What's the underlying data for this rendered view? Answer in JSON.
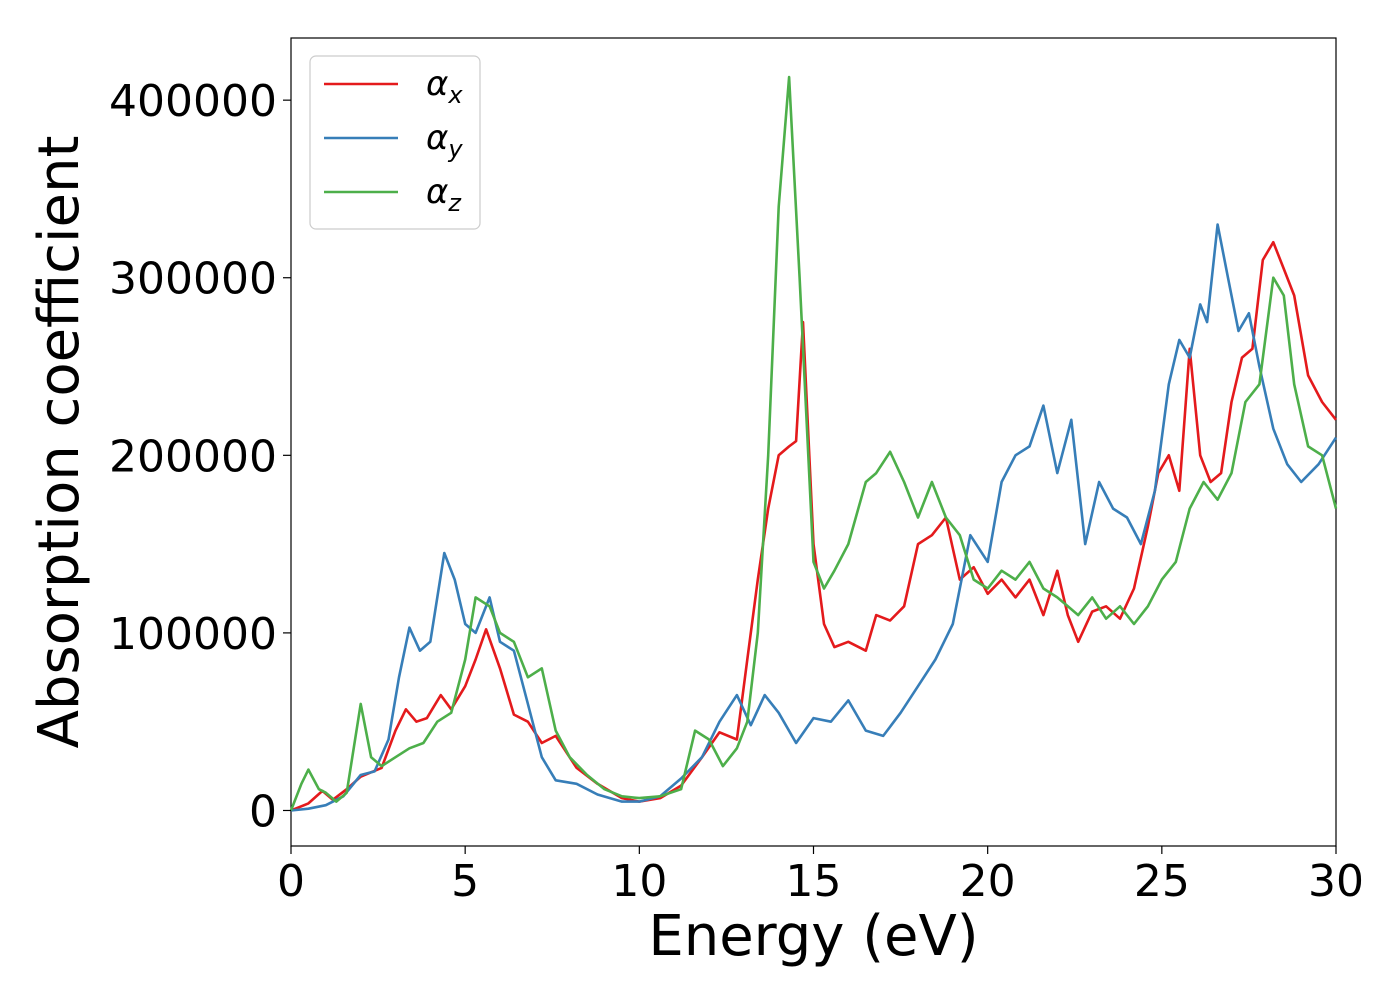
{
  "chart_data": {
    "type": "line",
    "xlabel": "Energy (eV)",
    "ylabel": "Absorption coefficient",
    "xlim": [
      0,
      30
    ],
    "ylim": [
      -20000,
      435000
    ],
    "xticks": [
      0,
      5,
      10,
      15,
      20,
      25,
      30
    ],
    "yticks": [
      0,
      100000,
      200000,
      300000,
      400000
    ],
    "grid": false,
    "legend_position": "top-left",
    "series": [
      {
        "name": "α",
        "subscript": "x",
        "color": "#e41a1c",
        "x": [
          0,
          0.5,
          0.9,
          1.2,
          1.6,
          2.0,
          2.6,
          3.0,
          3.3,
          3.6,
          3.9,
          4.3,
          4.6,
          5.0,
          5.3,
          5.6,
          6.0,
          6.4,
          6.8,
          7.2,
          7.6,
          8.2,
          8.8,
          9.5,
          10.0,
          10.6,
          11.2,
          11.8,
          12.3,
          12.8,
          13.1,
          13.4,
          13.7,
          14.0,
          14.3,
          14.5,
          14.7,
          15.0,
          15.3,
          15.6,
          16.0,
          16.5,
          16.8,
          17.2,
          17.6,
          18.0,
          18.4,
          18.8,
          19.2,
          19.6,
          20.0,
          20.4,
          20.8,
          21.2,
          21.6,
          22.0,
          22.3,
          22.6,
          23.0,
          23.4,
          23.8,
          24.2,
          24.6,
          24.9,
          25.2,
          25.5,
          25.8,
          26.1,
          26.4,
          26.7,
          27.0,
          27.3,
          27.6,
          27.9,
          28.2,
          28.5,
          28.8,
          29.2,
          29.6,
          30.0
        ],
        "y": [
          0,
          4000,
          11000,
          6000,
          12000,
          19000,
          24000,
          45000,
          57000,
          50000,
          52000,
          65000,
          57000,
          70000,
          85000,
          102000,
          80000,
          54000,
          50000,
          38000,
          42000,
          24000,
          15000,
          7000,
          5000,
          7000,
          14000,
          30000,
          44000,
          40000,
          85000,
          130000,
          170000,
          200000,
          205000,
          208000,
          275000,
          150000,
          105000,
          92000,
          95000,
          90000,
          110000,
          107000,
          115000,
          150000,
          155000,
          165000,
          130000,
          137000,
          122000,
          130000,
          120000,
          130000,
          110000,
          135000,
          110000,
          95000,
          112000,
          115000,
          108000,
          125000,
          160000,
          190000,
          200000,
          180000,
          260000,
          200000,
          185000,
          190000,
          230000,
          255000,
          260000,
          310000,
          320000,
          305000,
          290000,
          245000,
          230000,
          220000
        ]
      },
      {
        "name": "α",
        "subscript": "y",
        "color": "#377eb8",
        "x": [
          0,
          0.5,
          1.0,
          1.5,
          2.0,
          2.4,
          2.8,
          3.1,
          3.4,
          3.7,
          4.0,
          4.4,
          4.7,
          5.0,
          5.3,
          5.7,
          6.0,
          6.4,
          6.8,
          7.2,
          7.6,
          8.2,
          8.8,
          9.5,
          10.0,
          10.6,
          11.2,
          11.8,
          12.3,
          12.8,
          13.2,
          13.6,
          14.0,
          14.5,
          15.0,
          15.5,
          16.0,
          16.5,
          17.0,
          17.5,
          18.0,
          18.5,
          19.0,
          19.5,
          20.0,
          20.4,
          20.8,
          21.2,
          21.6,
          22.0,
          22.4,
          22.8,
          23.2,
          23.6,
          24.0,
          24.4,
          24.8,
          25.2,
          25.5,
          25.8,
          26.1,
          26.3,
          26.6,
          26.9,
          27.2,
          27.5,
          27.8,
          28.2,
          28.6,
          29.0,
          29.5,
          30.0
        ],
        "y": [
          0,
          1000,
          3000,
          8000,
          20000,
          22000,
          40000,
          75000,
          103000,
          90000,
          95000,
          145000,
          130000,
          105000,
          100000,
          120000,
          95000,
          90000,
          60000,
          30000,
          17000,
          15000,
          9000,
          5000,
          5000,
          8000,
          18000,
          30000,
          50000,
          65000,
          48000,
          65000,
          55000,
          38000,
          52000,
          50000,
          62000,
          45000,
          42000,
          55000,
          70000,
          85000,
          105000,
          155000,
          140000,
          185000,
          200000,
          205000,
          228000,
          190000,
          220000,
          150000,
          185000,
          170000,
          165000,
          150000,
          180000,
          240000,
          265000,
          255000,
          285000,
          275000,
          330000,
          300000,
          270000,
          280000,
          250000,
          215000,
          195000,
          185000,
          195000,
          210000
        ]
      },
      {
        "name": "α",
        "subscript": "z",
        "color": "#4daf4a",
        "x": [
          0,
          0.3,
          0.5,
          0.8,
          1.0,
          1.3,
          1.6,
          2.0,
          2.3,
          2.6,
          3.0,
          3.4,
          3.8,
          4.2,
          4.6,
          5.0,
          5.3,
          5.7,
          6.0,
          6.4,
          6.8,
          7.2,
          7.6,
          8.0,
          8.5,
          9.0,
          9.5,
          10.0,
          10.6,
          11.2,
          11.6,
          12.0,
          12.4,
          12.8,
          13.1,
          13.4,
          13.7,
          14.0,
          14.3,
          14.6,
          15.0,
          15.3,
          15.6,
          16.0,
          16.5,
          16.8,
          17.2,
          17.6,
          18.0,
          18.4,
          18.8,
          19.2,
          19.6,
          20.0,
          20.4,
          20.8,
          21.2,
          21.6,
          22.0,
          22.3,
          22.6,
          23.0,
          23.4,
          23.8,
          24.2,
          24.6,
          25.0,
          25.4,
          25.8,
          26.2,
          26.6,
          27.0,
          27.4,
          27.8,
          28.2,
          28.5,
          28.8,
          29.2,
          29.6,
          30.0
        ],
        "y": [
          0,
          15000,
          23000,
          12000,
          10000,
          5000,
          10000,
          60000,
          30000,
          25000,
          30000,
          35000,
          38000,
          50000,
          55000,
          85000,
          120000,
          115000,
          100000,
          95000,
          75000,
          80000,
          45000,
          30000,
          20000,
          12000,
          8000,
          7000,
          8000,
          12000,
          45000,
          40000,
          25000,
          35000,
          50000,
          100000,
          200000,
          340000,
          413000,
          300000,
          140000,
          125000,
          135000,
          150000,
          185000,
          190000,
          202000,
          185000,
          165000,
          185000,
          165000,
          155000,
          130000,
          125000,
          135000,
          130000,
          140000,
          125000,
          120000,
          115000,
          110000,
          120000,
          108000,
          115000,
          105000,
          115000,
          130000,
          140000,
          170000,
          185000,
          175000,
          190000,
          230000,
          240000,
          300000,
          290000,
          240000,
          205000,
          200000,
          170000
        ]
      }
    ]
  }
}
